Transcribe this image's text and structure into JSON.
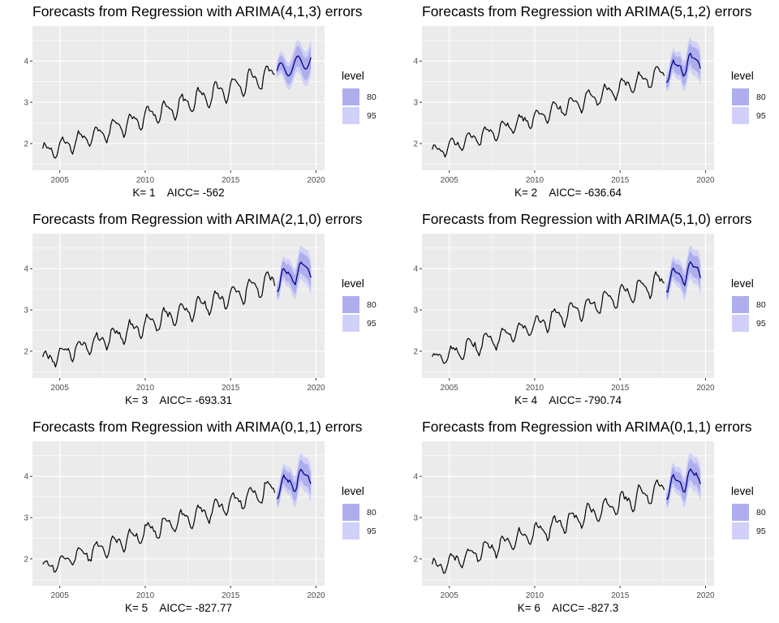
{
  "chart_data": [
    {
      "type": "line",
      "title": "Forecasts from Regression with ARIMA(4,1,3) errors",
      "xlabel": "K= 1    AICC= -562",
      "K": 1,
      "amp": 0.22,
      "noise": 0.05,
      "smooth": true,
      "xlim": [
        2003.4,
        2020.5
      ],
      "ylim": [
        1.35,
        4.85
      ],
      "xticks": [
        "2005",
        "2010",
        "2015",
        "2020"
      ],
      "yticks": [
        "2",
        "3",
        "4"
      ],
      "history": {
        "start": 2004.0,
        "end": 2017.6,
        "trend_start": 1.78,
        "trend_end": 3.72
      },
      "forecast": {
        "start": 2017.7,
        "end": 2019.7,
        "level_start": 3.72,
        "level_end": 4.05
      },
      "legend": {
        "title": "level",
        "entries": [
          "80",
          "95"
        ]
      }
    },
    {
      "type": "line",
      "title": "Forecasts from Regression with ARIMA(5,1,2) errors",
      "xlabel": "K= 2    AICC= -636.64",
      "K": 2,
      "amp": 0.18,
      "noise": 0.05,
      "smooth": false,
      "xlim": [
        2003.4,
        2020.5
      ],
      "ylim": [
        1.35,
        4.85
      ],
      "xticks": [
        "2005",
        "2010",
        "2015",
        "2020"
      ],
      "yticks": [
        "2",
        "3",
        "4"
      ],
      "history": {
        "start": 2004.0,
        "end": 2017.6,
        "trend_start": 1.78,
        "trend_end": 3.72
      },
      "forecast": {
        "start": 2017.7,
        "end": 2019.7,
        "level_start": 3.72,
        "level_end": 4.05
      },
      "legend": {
        "title": "level",
        "entries": [
          "80",
          "95"
        ]
      }
    },
    {
      "type": "line",
      "title": "Forecasts from Regression with ARIMA(2,1,0) errors",
      "xlabel": "K= 3    AICC= -693.31",
      "K": 3,
      "amp": 0.2,
      "noise": 0.06,
      "smooth": false,
      "xlim": [
        2003.4,
        2020.5
      ],
      "ylim": [
        1.35,
        4.85
      ],
      "xticks": [
        "2005",
        "2010",
        "2015",
        "2020"
      ],
      "yticks": [
        "2",
        "3",
        "4"
      ],
      "history": {
        "start": 2004.0,
        "end": 2017.6,
        "trend_start": 1.78,
        "trend_end": 3.72
      },
      "forecast": {
        "start": 2017.7,
        "end": 2019.7,
        "level_start": 3.72,
        "level_end": 4.05
      },
      "legend": {
        "title": "level",
        "entries": [
          "80",
          "95"
        ]
      }
    },
    {
      "type": "line",
      "title": "Forecasts from Regression with ARIMA(5,1,0) errors",
      "xlabel": "K= 4    AICC= -790.74",
      "K": 4,
      "amp": 0.2,
      "noise": 0.06,
      "smooth": false,
      "xlim": [
        2003.4,
        2020.5
      ],
      "ylim": [
        1.35,
        4.85
      ],
      "xticks": [
        "2005",
        "2010",
        "2015",
        "2020"
      ],
      "yticks": [
        "2",
        "3",
        "4"
      ],
      "history": {
        "start": 2004.0,
        "end": 2017.6,
        "trend_start": 1.78,
        "trend_end": 3.72
      },
      "forecast": {
        "start": 2017.7,
        "end": 2019.7,
        "level_start": 3.72,
        "level_end": 4.05
      },
      "legend": {
        "title": "level",
        "entries": [
          "80",
          "95"
        ]
      }
    },
    {
      "type": "line",
      "title": "Forecasts from Regression with ARIMA(0,1,1) errors",
      "xlabel": "K= 5    AICC= -827.77",
      "K": 5,
      "amp": 0.2,
      "noise": 0.06,
      "smooth": false,
      "xlim": [
        2003.4,
        2020.5
      ],
      "ylim": [
        1.35,
        4.85
      ],
      "xticks": [
        "2005",
        "2010",
        "2015",
        "2020"
      ],
      "yticks": [
        "2",
        "3",
        "4"
      ],
      "history": {
        "start": 2004.0,
        "end": 2017.6,
        "trend_start": 1.78,
        "trend_end": 3.72
      },
      "forecast": {
        "start": 2017.7,
        "end": 2019.7,
        "level_start": 3.72,
        "level_end": 4.05
      },
      "legend": {
        "title": "level",
        "entries": [
          "80",
          "95"
        ]
      }
    },
    {
      "type": "line",
      "title": "Forecasts from Regression with ARIMA(0,1,1) errors",
      "xlabel": "K= 6    AICC= -827.3",
      "K": 6,
      "amp": 0.2,
      "noise": 0.06,
      "smooth": false,
      "xlim": [
        2003.4,
        2020.5
      ],
      "ylim": [
        1.35,
        4.85
      ],
      "xticks": [
        "2005",
        "2010",
        "2015",
        "2020"
      ],
      "yticks": [
        "2",
        "3",
        "4"
      ],
      "history": {
        "start": 2004.0,
        "end": 2017.6,
        "trend_start": 1.78,
        "trend_end": 3.72
      },
      "forecast": {
        "start": 2017.7,
        "end": 2019.7,
        "level_start": 3.72,
        "level_end": 4.05
      },
      "legend": {
        "title": "level",
        "entries": [
          "80",
          "95"
        ]
      }
    }
  ],
  "colors": {
    "panel_bg": "#ebebeb",
    "grid": "#ffffff",
    "history_line": "#000000",
    "forecast_line": "#00008b",
    "band80": "#aeaeed",
    "band95": "#d0d0f9"
  }
}
